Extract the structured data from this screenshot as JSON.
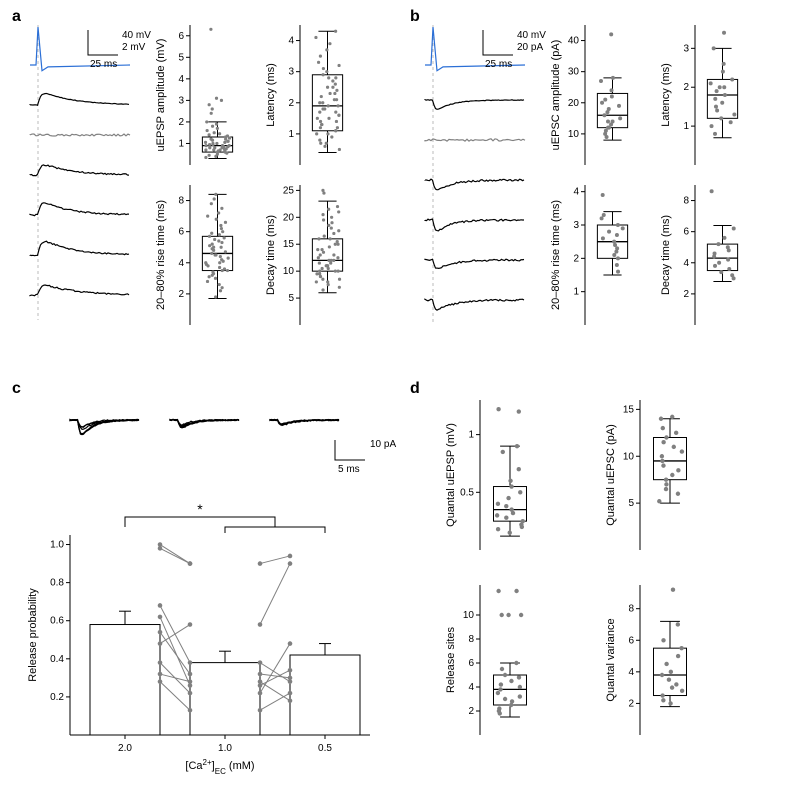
{
  "colors": {
    "bg": "#ffffff",
    "blue": "#2b6fd6",
    "black": "#000000",
    "gray": "#808080",
    "lightgray": "#bbbbbb"
  },
  "labels": {
    "a": "a",
    "b": "b",
    "c": "c",
    "d": "d"
  },
  "panelA": {
    "scale": {
      "v_label": "40 mV",
      "v_label2": "2 mV",
      "t_label": "25 ms"
    },
    "boxplots": {
      "amp": {
        "ylabel": "uEPSP amplitude (mV)",
        "ylim": [
          0,
          6.5
        ],
        "yticks": [
          1,
          2,
          3,
          4,
          5,
          6
        ],
        "q1": 0.6,
        "med": 0.9,
        "q3": 1.3,
        "wlo": 0.3,
        "whi": 2.0,
        "points": [
          0.35,
          0.4,
          0.45,
          0.5,
          0.55,
          0.6,
          0.6,
          0.65,
          0.65,
          0.7,
          0.7,
          0.7,
          0.75,
          0.75,
          0.8,
          0.8,
          0.8,
          0.85,
          0.85,
          0.9,
          0.9,
          0.9,
          0.95,
          0.95,
          1.0,
          1.0,
          1.05,
          1.05,
          1.1,
          1.1,
          1.15,
          1.2,
          1.2,
          1.25,
          1.3,
          1.35,
          1.4,
          1.45,
          1.5,
          1.6,
          1.7,
          1.8,
          1.9,
          2.0,
          2.4,
          2.6,
          2.8,
          3.0,
          3.1,
          6.3
        ]
      },
      "lat": {
        "ylabel": "Latency (ms)",
        "ylim": [
          0,
          4.5
        ],
        "yticks": [
          1,
          2,
          3,
          4
        ],
        "q1": 1.1,
        "med": 1.9,
        "q3": 2.9,
        "wlo": 0.4,
        "whi": 4.3,
        "points": [
          0.5,
          0.6,
          0.7,
          0.7,
          0.8,
          0.9,
          1.0,
          1.0,
          1.1,
          1.1,
          1.2,
          1.2,
          1.3,
          1.3,
          1.4,
          1.4,
          1.5,
          1.5,
          1.6,
          1.6,
          1.7,
          1.7,
          1.8,
          1.8,
          1.9,
          1.9,
          2.0,
          2.0,
          2.1,
          2.1,
          2.2,
          2.3,
          2.3,
          2.4,
          2.5,
          2.5,
          2.6,
          2.7,
          2.8,
          2.8,
          2.9,
          3.0,
          3.1,
          3.2,
          3.3,
          3.5,
          3.7,
          3.9,
          4.1,
          4.3
        ]
      },
      "rise": {
        "ylabel": "20–80% rise time (ms)",
        "ylim": [
          0,
          9
        ],
        "yticks": [
          2,
          4,
          6,
          8
        ],
        "q1": 3.5,
        "med": 4.6,
        "q3": 5.7,
        "wlo": 1.7,
        "whi": 8.4,
        "points": [
          1.8,
          2.2,
          2.4,
          2.6,
          2.8,
          3.0,
          3.1,
          3.2,
          3.3,
          3.4,
          3.5,
          3.5,
          3.6,
          3.7,
          3.8,
          3.9,
          4.0,
          4.0,
          4.1,
          4.2,
          4.3,
          4.4,
          4.5,
          4.5,
          4.6,
          4.7,
          4.8,
          4.9,
          5.0,
          5.0,
          5.1,
          5.2,
          5.3,
          5.4,
          5.5,
          5.6,
          5.7,
          5.8,
          5.9,
          6.0,
          6.2,
          6.4,
          6.6,
          6.8,
          7.0,
          7.2,
          7.5,
          7.8,
          8.1,
          8.4
        ]
      },
      "decay": {
        "ylabel": "Decay time (ms)",
        "ylim": [
          0,
          26
        ],
        "yticks": [
          5,
          10,
          15,
          20,
          25
        ],
        "q1": 10,
        "med": 12,
        "q3": 16,
        "wlo": 6,
        "whi": 23,
        "points": [
          6.5,
          7,
          7.5,
          8,
          8,
          8.5,
          8.5,
          9,
          9,
          9.5,
          9.5,
          10,
          10,
          10,
          10.5,
          10.5,
          11,
          11,
          11,
          11.5,
          11.5,
          12,
          12,
          12,
          12.5,
          12.5,
          13,
          13,
          13.5,
          14,
          14,
          14.5,
          15,
          15,
          15.5,
          16,
          16,
          16.5,
          17,
          17.5,
          18,
          18.5,
          19,
          19.5,
          20,
          20.5,
          21,
          21.5,
          22,
          24.5,
          25
        ]
      }
    }
  },
  "panelB": {
    "scale": {
      "v_label": "40 mV",
      "i_label": "20 pA",
      "t_label": "25 ms"
    },
    "boxplots": {
      "amp": {
        "ylabel": "uEPSC amplitude (pA)",
        "ylim": [
          0,
          45
        ],
        "yticks": [
          10,
          20,
          30,
          40
        ],
        "q1": 12,
        "med": 16,
        "q3": 23,
        "wlo": 8,
        "whi": 28,
        "points": [
          9,
          10,
          11,
          12,
          12,
          13,
          14,
          14,
          15,
          16,
          17,
          18,
          19,
          20,
          21,
          22,
          24,
          27,
          28,
          42
        ]
      },
      "lat": {
        "ylabel": "Latency (ms)",
        "ylim": [
          0,
          3.6
        ],
        "yticks": [
          1,
          2,
          3
        ],
        "q1": 1.2,
        "med": 1.8,
        "q3": 2.2,
        "wlo": 0.7,
        "whi": 3.0,
        "points": [
          0.8,
          1.0,
          1.1,
          1.2,
          1.3,
          1.4,
          1.5,
          1.6,
          1.7,
          1.8,
          1.9,
          2.0,
          2.0,
          2.1,
          2.2,
          2.4,
          2.6,
          3.0,
          3.4
        ]
      },
      "rise": {
        "ylabel": "20–80% rise time (ms)",
        "ylim": [
          0,
          4.2
        ],
        "yticks": [
          1,
          2,
          3,
          4
        ],
        "q1": 2.0,
        "med": 2.5,
        "q3": 3.0,
        "wlo": 1.5,
        "whi": 3.4,
        "points": [
          1.6,
          1.8,
          2.0,
          2.1,
          2.2,
          2.3,
          2.4,
          2.5,
          2.6,
          2.7,
          2.8,
          2.9,
          3.0,
          3.2,
          3.3,
          3.9
        ]
      },
      "decay": {
        "ylabel": "Decay time (ms)",
        "ylim": [
          0,
          9
        ],
        "yticks": [
          2,
          4,
          6,
          8
        ],
        "q1": 3.5,
        "med": 4.3,
        "q3": 5.2,
        "wlo": 2.8,
        "whi": 6.4,
        "points": [
          3.0,
          3.2,
          3.4,
          3.6,
          3.8,
          4.0,
          4.2,
          4.4,
          4.6,
          4.8,
          5.0,
          5.2,
          5.6,
          6.2,
          8.6
        ]
      }
    }
  },
  "panelC": {
    "scale": {
      "i_label": "10 pA",
      "t_label": "5 ms"
    },
    "xlabel": "[Ca²⁺]ₑᴄ (mM)",
    "ylabel": "Release probability",
    "xcats": [
      "2.0",
      "1.0",
      "0.5"
    ],
    "ylim": [
      0,
      1.05
    ],
    "yticks": [
      0.2,
      0.4,
      0.6,
      0.8,
      1.0
    ],
    "bars": [
      0.58,
      0.38,
      0.42
    ],
    "errs": [
      0.07,
      0.06,
      0.06
    ],
    "pairs20_10": [
      [
        0.28,
        0.13
      ],
      [
        0.32,
        0.28
      ],
      [
        0.38,
        0.22
      ],
      [
        0.48,
        0.58
      ],
      [
        0.54,
        0.32
      ],
      [
        0.62,
        0.26
      ],
      [
        0.68,
        0.38
      ],
      [
        0.98,
        0.9
      ],
      [
        1.0,
        0.9
      ]
    ],
    "pairs10_05": [
      [
        0.13,
        0.22
      ],
      [
        0.28,
        0.18
      ],
      [
        0.22,
        0.48
      ],
      [
        0.58,
        0.9
      ],
      [
        0.32,
        0.3
      ],
      [
        0.26,
        0.34
      ],
      [
        0.38,
        0.28
      ],
      [
        0.9,
        0.94
      ]
    ],
    "sig": "*"
  },
  "panelD": {
    "boxplots": {
      "quepsp": {
        "ylabel": "Quantal uEPSP (mV)",
        "ylim": [
          0,
          1.3
        ],
        "yticks": [
          0.5,
          1.0
        ],
        "q1": 0.25,
        "med": 0.35,
        "q3": 0.55,
        "wlo": 0.12,
        "whi": 0.9,
        "points": [
          0.15,
          0.18,
          0.2,
          0.22,
          0.25,
          0.28,
          0.3,
          0.32,
          0.35,
          0.38,
          0.4,
          0.45,
          0.5,
          0.55,
          0.6,
          0.7,
          0.85,
          0.9,
          1.2,
          1.22
        ]
      },
      "quepsc": {
        "ylabel": "Quantal uEPSC (pA)",
        "ylim": [
          0,
          16
        ],
        "yticks": [
          5,
          10,
          15
        ],
        "q1": 7.5,
        "med": 9.5,
        "q3": 12,
        "wlo": 5,
        "whi": 14,
        "points": [
          5.2,
          6,
          6.5,
          7,
          7.5,
          8,
          8.5,
          9,
          9.5,
          10,
          10.5,
          11,
          11.5,
          12,
          12.5,
          13,
          14,
          14.2
        ]
      },
      "sites": {
        "ylabel": "Release sites",
        "ylim": [
          0,
          12.5
        ],
        "yticks": [
          2,
          4,
          6,
          8,
          10
        ],
        "q1": 2.5,
        "med": 3.8,
        "q3": 5.0,
        "wlo": 1.5,
        "whi": 6.0,
        "points": [
          1.8,
          2,
          2.2,
          2.5,
          2.8,
          3,
          3.2,
          3.5,
          3.8,
          4,
          4.2,
          4.5,
          4.8,
          5,
          5.5,
          6,
          10,
          10,
          10,
          12,
          12
        ]
      },
      "qvar": {
        "ylabel": "Quantal variance",
        "ylim": [
          0,
          9.5
        ],
        "yticks": [
          2,
          4,
          6,
          8
        ],
        "q1": 2.5,
        "med": 3.8,
        "q3": 5.5,
        "wlo": 1.8,
        "whi": 7.2,
        "points": [
          2,
          2.2,
          2.5,
          2.8,
          3,
          3.2,
          3.5,
          3.8,
          4,
          4.5,
          5,
          5.5,
          6,
          7,
          9.2
        ]
      }
    }
  }
}
